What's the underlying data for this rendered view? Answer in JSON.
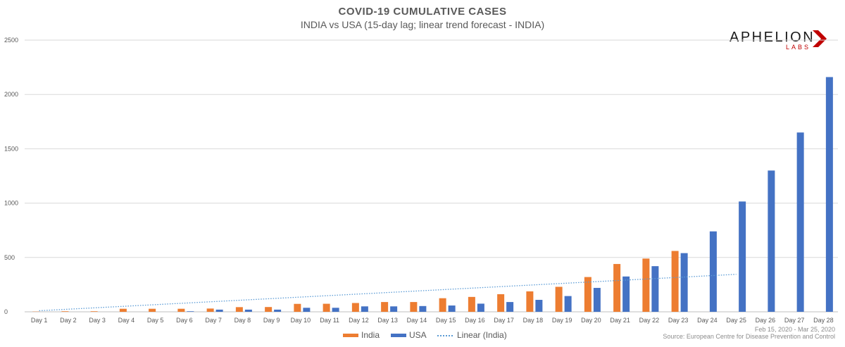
{
  "header": {
    "title": "COVID-19 CUMULATIVE CASES",
    "subtitle": "INDIA vs USA (15-day lag; linear trend forecast - INDIA)"
  },
  "logo": {
    "main": "APHELION",
    "sub": "LABS",
    "icon": "chevron-arrow-icon",
    "accent_color": "#c00000"
  },
  "footer": {
    "date_range": "Feb 15, 2020 - Mar 25, 2020",
    "source": "Source: European Centre for Disease Prevention and Control"
  },
  "chart_data": {
    "type": "bar",
    "title": "COVID-19 CUMULATIVE CASES",
    "subtitle": "INDIA vs USA (15-day lag; linear trend forecast - INDIA)",
    "categories": [
      "Day 1",
      "Day 2",
      "Day 3",
      "Day 4",
      "Day 5",
      "Day 6",
      "Day 7",
      "Day 8",
      "Day 9",
      "Day 10",
      "Day 11",
      "Day 12",
      "Day 13",
      "Day 14",
      "Day 15",
      "Day 16",
      "Day 17",
      "Day 18",
      "Day 19",
      "Day 20",
      "Day 21",
      "Day 22",
      "Day 23",
      "Day 24",
      "Day 25",
      "Day 26",
      "Day 27",
      "Day 28"
    ],
    "series": [
      {
        "name": "India",
        "color": "#ed7d31",
        "values": [
          2,
          5,
          5,
          28,
          28,
          28,
          30,
          43,
          44,
          73,
          74,
          81,
          90,
          90,
          125,
          137,
          162,
          188,
          230,
          320,
          440,
          490,
          560,
          null,
          null,
          null,
          null,
          null
        ]
      },
      {
        "name": "USA",
        "color": "#4472c4",
        "values": [
          0,
          0,
          0,
          0,
          0,
          5,
          20,
          20,
          20,
          37,
          37,
          50,
          50,
          53,
          58,
          75,
          90,
          110,
          145,
          220,
          325,
          420,
          540,
          740,
          1015,
          1300,
          1650,
          2160
        ]
      }
    ],
    "trendline": {
      "name": "Linear (India)",
      "series": "India",
      "type": "linear",
      "color": "#5b9bd5",
      "x_start": 1,
      "x_end": 25,
      "y_start": 10,
      "y_end": 345
    },
    "yticks": [
      0,
      500,
      1000,
      1500,
      2000,
      2500
    ],
    "ylim": [
      0,
      2500
    ],
    "grid": true,
    "legend": "bottom-center"
  }
}
